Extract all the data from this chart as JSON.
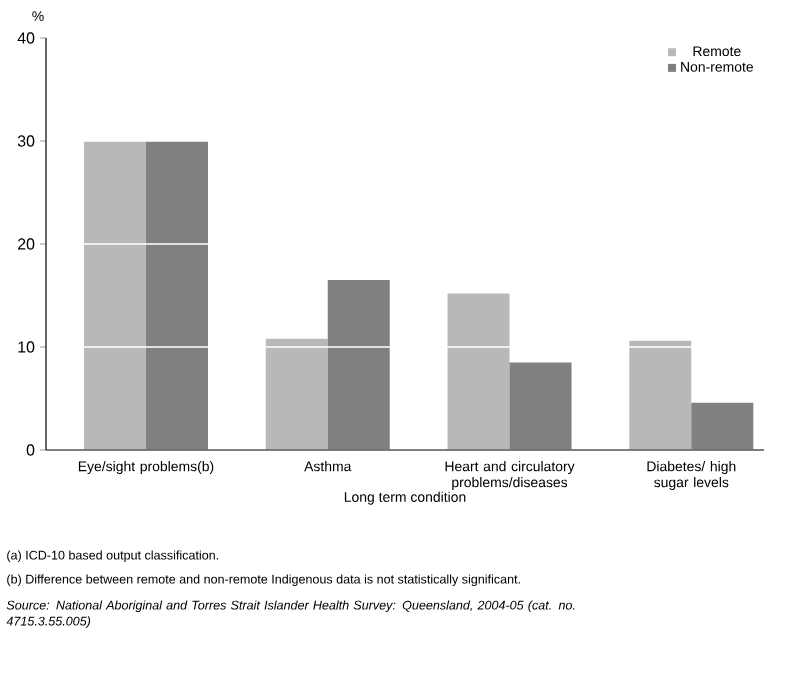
{
  "chart_data": {
    "type": "bar",
    "categories": [
      "Eye/sight problems(b)",
      "Asthma",
      "Heart and circulatory problems/diseases",
      "Diabetes/ high sugar levels"
    ],
    "series": [
      {
        "name": "Remote",
        "color": "#b8b8b8",
        "values": [
          30,
          10.8,
          15.2,
          10.6
        ]
      },
      {
        "name": "Non-remote",
        "color": "#808080",
        "values": [
          30,
          16.5,
          8.5,
          4.6
        ]
      }
    ],
    "xlabel": "Long term condition",
    "ylabel": "%",
    "ylim": [
      0,
      40
    ],
    "yticks": [
      0,
      10,
      20,
      30,
      40
    ],
    "grid": "y",
    "legend": "top right",
    "annotations": [
      "(a) ICD-10 based output classification.",
      "(b) Difference between remote and non-remote Indigenous data is not statistically significant.",
      "Source: National Aboriginal and Torres Strait Islander Health Survey: Queensland, 2004-05 (cat. no. 4715.3.55.005)"
    ]
  }
}
